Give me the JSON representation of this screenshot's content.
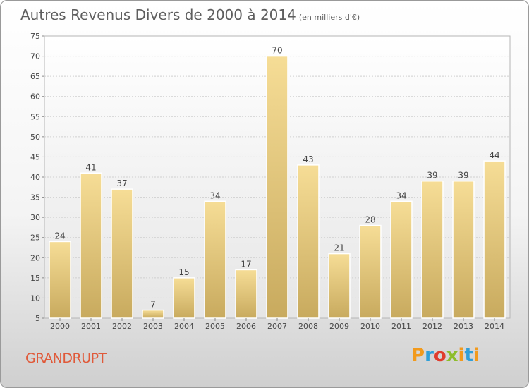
{
  "title": "Autres Revenus Divers de 2000 à 2014",
  "unit": "(en milliers d'€)",
  "place": "GRANDRUPT",
  "logo": {
    "text": "Proxiti",
    "colors": [
      "#f29a1c",
      "#2f9fd8",
      "#e03c2d",
      "#8dbd2b",
      "#f29a1c",
      "#2f9fd8"
    ]
  },
  "chart_data": {
    "type": "bar",
    "categories": [
      "2000",
      "2001",
      "2002",
      "2003",
      "2004",
      "2005",
      "2006",
      "2007",
      "2008",
      "2009",
      "2010",
      "2011",
      "2012",
      "2013",
      "2014"
    ],
    "values": [
      24,
      41,
      37,
      7,
      15,
      34,
      17,
      70,
      43,
      21,
      28,
      34,
      39,
      39,
      44
    ],
    "ylim": [
      5,
      75
    ],
    "yticks": [
      5,
      10,
      15,
      20,
      25,
      30,
      35,
      40,
      45,
      50,
      55,
      60,
      65,
      70,
      75
    ],
    "grid": true,
    "bar_color": "#e8cc80"
  }
}
